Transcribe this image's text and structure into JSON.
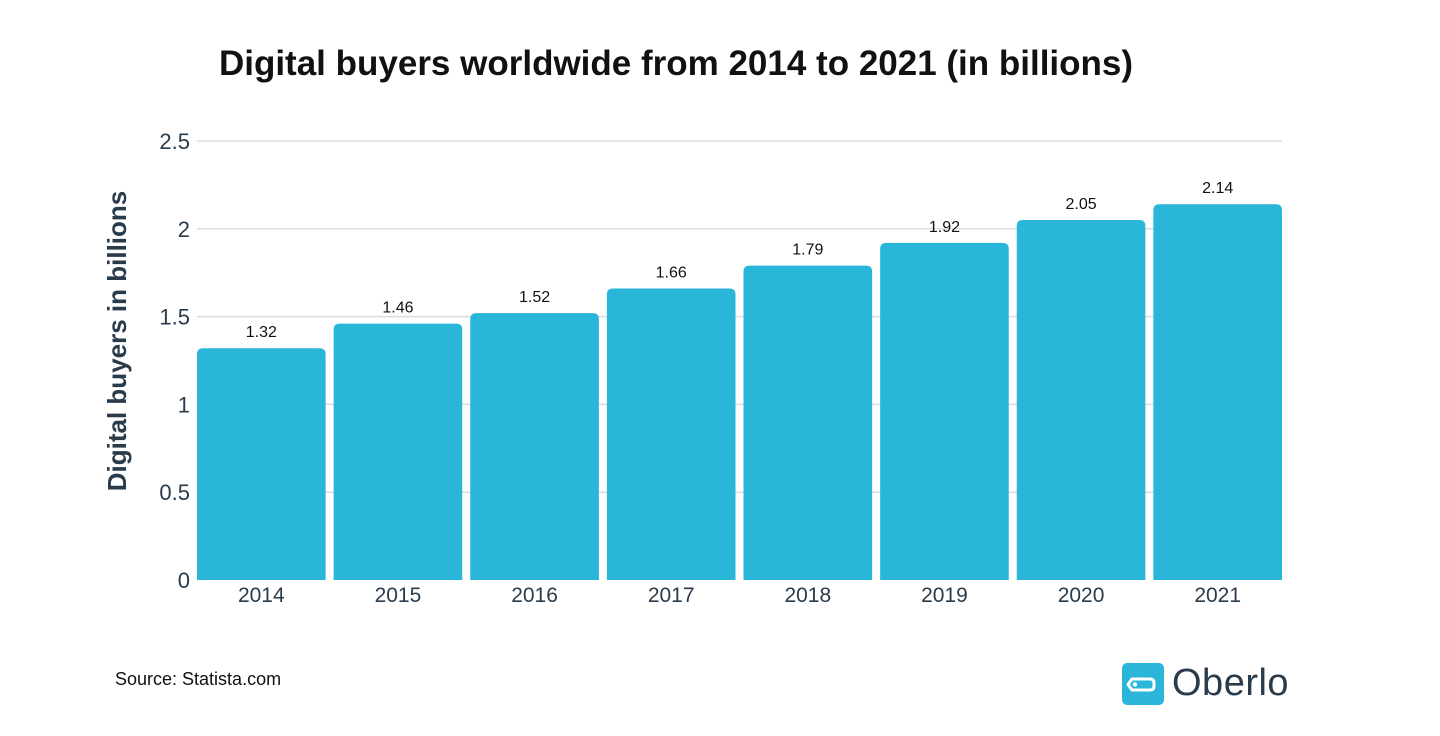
{
  "chart_data": {
    "type": "bar",
    "title": "Digital buyers worldwide from 2014 to 2021 (in billions)",
    "xlabel": "",
    "ylabel": "Digital buyers in billions",
    "categories": [
      "2014",
      "2015",
      "2016",
      "2017",
      "2018",
      "2019",
      "2020",
      "2021"
    ],
    "values": [
      1.32,
      1.46,
      1.52,
      1.66,
      1.79,
      1.92,
      2.05,
      2.14
    ],
    "data_labels": [
      "1.32",
      "1.46",
      "1.52",
      "1.66",
      "1.79",
      "1.92",
      "2.05",
      "2.14"
    ],
    "ylim": [
      0,
      2.5
    ],
    "yticks": [
      0,
      0.5,
      1,
      1.5,
      2,
      2.5
    ],
    "ytick_labels": [
      "0",
      "0.5",
      "1",
      "1.5",
      "2",
      "2.5"
    ],
    "grid": true,
    "bar_color": "#29b6d8"
  },
  "source": "Source: Statista.com",
  "logo": {
    "text": "Oberlo",
    "color": "#2bb6d9"
  }
}
